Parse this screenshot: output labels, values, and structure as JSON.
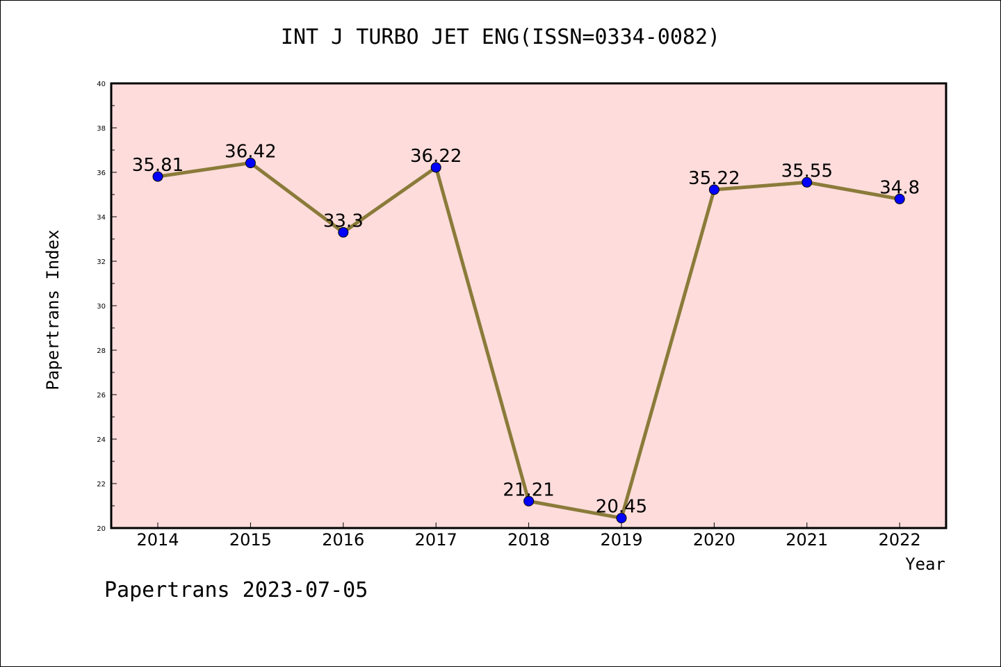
{
  "chart_data": {
    "type": "line",
    "title": "INT J TURBO JET ENG(ISSN=0334-0082)",
    "xlabel": "Year",
    "ylabel": "Papertrans Index",
    "categories": [
      "2014",
      "2015",
      "2016",
      "2017",
      "2018",
      "2019",
      "2020",
      "2021",
      "2022"
    ],
    "series": [
      {
        "values": [
          35.81,
          36.42,
          33.3,
          36.22,
          21.21,
          20.45,
          35.22,
          35.55,
          34.8
        ],
        "labels": [
          "35.81",
          "36.42",
          "33.3",
          "36.22",
          "21.21",
          "20.45",
          "35.22",
          "35.55",
          "34.8"
        ]
      }
    ],
    "ylim": [
      20,
      40
    ],
    "yticks": [
      "20",
      "22",
      "24",
      "26",
      "28",
      "30",
      "32",
      "34",
      "36",
      "38",
      "40"
    ],
    "grid": false,
    "colors": {
      "plot_background": "#fddcdb",
      "line": "#8b7b3a",
      "marker": "#0000ff"
    }
  },
  "footer": {
    "note": "Papertrans 2023-07-05"
  }
}
